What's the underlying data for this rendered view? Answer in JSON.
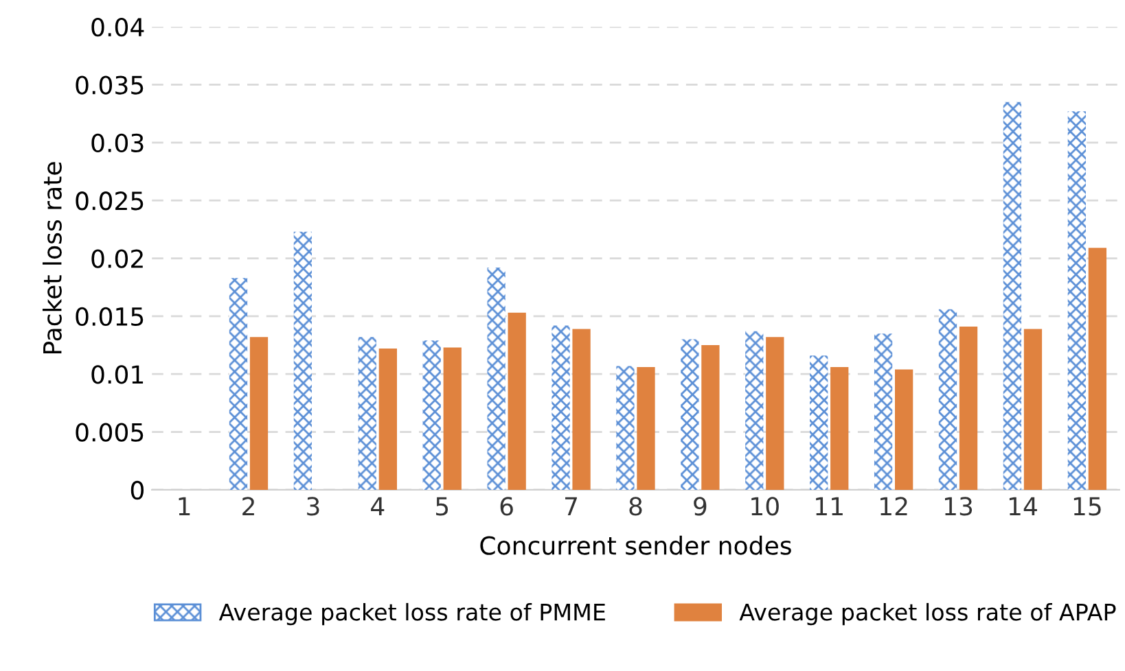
{
  "chart_data": {
    "type": "bar",
    "xlabel": "Concurrent sender nodes",
    "ylabel": "Packet loss rate",
    "categories": [
      "1",
      "2",
      "3",
      "4",
      "5",
      "6",
      "7",
      "8",
      "9",
      "10",
      "11",
      "12",
      "13",
      "14",
      "15"
    ],
    "series": [
      {
        "name": "Average packet loss rate of PMME",
        "color": "#5b8fd6",
        "values": [
          0,
          0.0183,
          0.0223,
          0.0132,
          0.0129,
          0.0192,
          0.0142,
          0.0107,
          0.013,
          0.0137,
          0.0116,
          0.0135,
          0.0156,
          0.0335,
          0.0327
        ]
      },
      {
        "name": "Average packet loss rate of APAP",
        "color": "#e0823f",
        "values": [
          0,
          0.0132,
          0,
          0.0122,
          0.0123,
          0.0153,
          0.0139,
          0.0106,
          0.0125,
          0.0132,
          0.0106,
          0.0104,
          0.0141,
          0.0139,
          0.0209
        ]
      }
    ],
    "ylim": [
      0,
      0.04
    ],
    "yticks": [
      {
        "value": 0,
        "label": "0"
      },
      0.005,
      0.01,
      0.015,
      0.02,
      0.025,
      0.03,
      0.035,
      0.04
    ],
    "grid": "y",
    "legend": "bottom"
  }
}
